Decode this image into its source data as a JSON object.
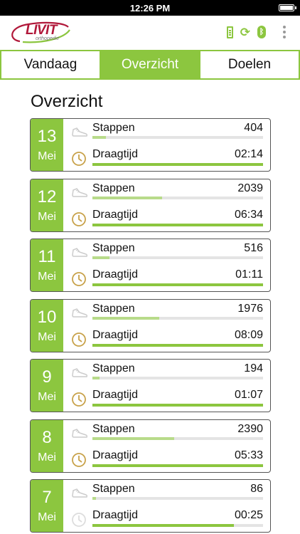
{
  "status_bar": {
    "time": "12:26 PM"
  },
  "app": {
    "logo_text": "LIVIT",
    "logo_subtext": "orthopedie",
    "icons": [
      "battery-icon",
      "sync-icon",
      "bluetooth-icon",
      "overflow-menu-icon"
    ]
  },
  "tabs": [
    {
      "label": "Vandaag",
      "active": false
    },
    {
      "label": "Overzicht",
      "active": true
    },
    {
      "label": "Doelen",
      "active": false
    }
  ],
  "section_title": "Overzicht",
  "colors": {
    "accent": "#8cc63f",
    "accent_light": "#b8db8a",
    "clock_dim": "#dddddd",
    "clock": "#c8a24a"
  },
  "days": [
    {
      "day": "13",
      "month": "Mei",
      "steps_label": "Stappen",
      "steps": "404",
      "steps_fraction": 0.08,
      "wear_label": "Draagtijd",
      "wear": "02:14",
      "wear_fraction": 1.0,
      "clock_active": true
    },
    {
      "day": "12",
      "month": "Mei",
      "steps_label": "Stappen",
      "steps": "2039",
      "steps_fraction": 0.41,
      "wear_label": "Draagtijd",
      "wear": "06:34",
      "wear_fraction": 1.0,
      "clock_active": true
    },
    {
      "day": "11",
      "month": "Mei",
      "steps_label": "Stappen",
      "steps": "516",
      "steps_fraction": 0.1,
      "wear_label": "Draagtijd",
      "wear": "01:11",
      "wear_fraction": 1.0,
      "clock_active": true
    },
    {
      "day": "10",
      "month": "Mei",
      "steps_label": "Stappen",
      "steps": "1976",
      "steps_fraction": 0.39,
      "wear_label": "Draagtijd",
      "wear": "08:09",
      "wear_fraction": 1.0,
      "clock_active": true
    },
    {
      "day": "9",
      "month": "Mei",
      "steps_label": "Stappen",
      "steps": "194",
      "steps_fraction": 0.04,
      "wear_label": "Draagtijd",
      "wear": "01:07",
      "wear_fraction": 1.0,
      "clock_active": true
    },
    {
      "day": "8",
      "month": "Mei",
      "steps_label": "Stappen",
      "steps": "2390",
      "steps_fraction": 0.48,
      "wear_label": "Draagtijd",
      "wear": "05:33",
      "wear_fraction": 1.0,
      "clock_active": true
    },
    {
      "day": "7",
      "month": "Mei",
      "steps_label": "Stappen",
      "steps": "86",
      "steps_fraction": 0.02,
      "wear_label": "Draagtijd",
      "wear": "00:25",
      "wear_fraction": 0.83,
      "clock_active": false
    }
  ]
}
